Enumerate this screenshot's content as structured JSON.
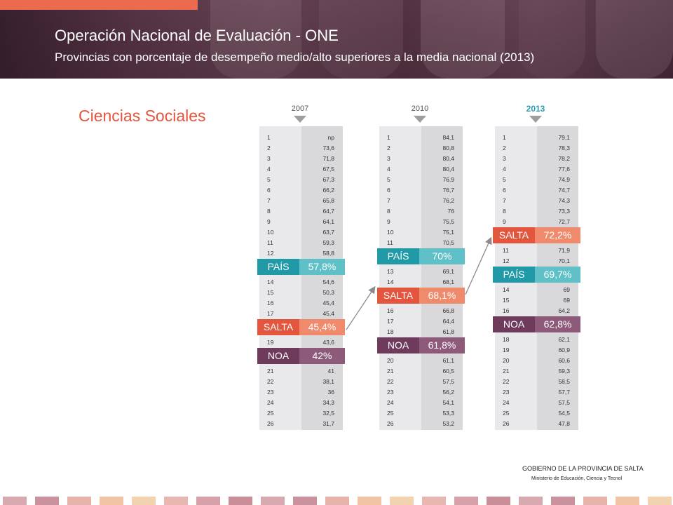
{
  "header": {
    "title": "Operación Nacional de Evaluación - ONE",
    "subtitle": "Provincias con porcentaje de desempeño medio/alto superiores a la media nacional  (2013)"
  },
  "section_title": "Ciencias Sociales",
  "footer": {
    "org": "GOBIERNO DE LA PROVINCIA DE SALTA",
    "ministry": "Ministerio de Educación, Ciencia y Tecnol"
  },
  "colors": {
    "pais": "#1f9aa6",
    "pais_light": "#5fc0c8",
    "salta": "#e4553e",
    "salta_light": "#ef8a6c",
    "noa": "#6e3b5c",
    "noa_light": "#8e5a7a"
  },
  "chart_data": {
    "type": "table",
    "title": "Provincias con porcentaje de desempeño medio/alto superiores a la media nacional  (2013)",
    "subject": "Ciencias Sociales",
    "columns": [
      {
        "year": "2007",
        "highlight": false,
        "entries": [
          {
            "kind": "row",
            "rank": "1",
            "value": "np"
          },
          {
            "kind": "row",
            "rank": "2",
            "value": "73,6"
          },
          {
            "kind": "row",
            "rank": "3",
            "value": "71,8"
          },
          {
            "kind": "row",
            "rank": "4",
            "value": "67,5"
          },
          {
            "kind": "row",
            "rank": "5",
            "value": "67,3"
          },
          {
            "kind": "row",
            "rank": "6",
            "value": "66,2"
          },
          {
            "kind": "row",
            "rank": "7",
            "value": "65,8"
          },
          {
            "kind": "row",
            "rank": "8",
            "value": "64,7"
          },
          {
            "kind": "row",
            "rank": "9",
            "value": "64,1"
          },
          {
            "kind": "row",
            "rank": "10",
            "value": "63,7"
          },
          {
            "kind": "row",
            "rank": "11",
            "value": "59,3"
          },
          {
            "kind": "row",
            "rank": "12",
            "value": "58,8"
          },
          {
            "kind": "pais",
            "label": "PAÍS",
            "value": "57,8%"
          },
          {
            "kind": "row",
            "rank": "14",
            "value": "54,6"
          },
          {
            "kind": "row",
            "rank": "15",
            "value": "50,3"
          },
          {
            "kind": "row",
            "rank": "16",
            "value": "45,4"
          },
          {
            "kind": "row",
            "rank": "17",
            "value": "45,4"
          },
          {
            "kind": "salta",
            "label": "SALTA",
            "value": "45,4%"
          },
          {
            "kind": "row",
            "rank": "19",
            "value": "43,6"
          },
          {
            "kind": "noa",
            "label": "NOA",
            "value": "42%"
          },
          {
            "kind": "row",
            "rank": "21",
            "value": "41"
          },
          {
            "kind": "row",
            "rank": "22",
            "value": "38,1"
          },
          {
            "kind": "row",
            "rank": "23",
            "value": "36"
          },
          {
            "kind": "row",
            "rank": "24",
            "value": "34,3"
          },
          {
            "kind": "row",
            "rank": "25",
            "value": "32,5"
          },
          {
            "kind": "row",
            "rank": "26",
            "value": "31,7"
          }
        ]
      },
      {
        "year": "2010",
        "highlight": false,
        "entries": [
          {
            "kind": "row",
            "rank": "1",
            "value": "84,1"
          },
          {
            "kind": "row",
            "rank": "2",
            "value": "80,8"
          },
          {
            "kind": "row",
            "rank": "3",
            "value": "80,4"
          },
          {
            "kind": "row",
            "rank": "4",
            "value": "80,4"
          },
          {
            "kind": "row",
            "rank": "5",
            "value": "76,9"
          },
          {
            "kind": "row",
            "rank": "6",
            "value": "76,7"
          },
          {
            "kind": "row",
            "rank": "7",
            "value": "76,2"
          },
          {
            "kind": "row",
            "rank": "8",
            "value": "76"
          },
          {
            "kind": "row",
            "rank": "9",
            "value": "75,5"
          },
          {
            "kind": "row",
            "rank": "10",
            "value": "75,1"
          },
          {
            "kind": "row",
            "rank": "11",
            "value": "70,5"
          },
          {
            "kind": "pais",
            "label": "PAÍS",
            "value": "70%"
          },
          {
            "kind": "row",
            "rank": "13",
            "value": "69,1"
          },
          {
            "kind": "row",
            "rank": "14",
            "value": "68,1"
          },
          {
            "kind": "salta",
            "label": "SALTA",
            "value": "68,1%"
          },
          {
            "kind": "row",
            "rank": "16",
            "value": "66,8"
          },
          {
            "kind": "row",
            "rank": "17",
            "value": "64,4"
          },
          {
            "kind": "row",
            "rank": "18",
            "value": "61,8"
          },
          {
            "kind": "noa",
            "label": "NOA",
            "value": "61,8%"
          },
          {
            "kind": "row",
            "rank": "20",
            "value": "61,1"
          },
          {
            "kind": "row",
            "rank": "21",
            "value": "60,5"
          },
          {
            "kind": "row",
            "rank": "22",
            "value": "57,5"
          },
          {
            "kind": "row",
            "rank": "23",
            "value": "56,2"
          },
          {
            "kind": "row",
            "rank": "24",
            "value": "54,1"
          },
          {
            "kind": "row",
            "rank": "25",
            "value": "53,3"
          },
          {
            "kind": "row",
            "rank": "26",
            "value": "53,2"
          }
        ]
      },
      {
        "year": "2013",
        "highlight": true,
        "entries": [
          {
            "kind": "row",
            "rank": "1",
            "value": "79,1"
          },
          {
            "kind": "row",
            "rank": "2",
            "value": "78,3"
          },
          {
            "kind": "row",
            "rank": "3",
            "value": "78,2"
          },
          {
            "kind": "row",
            "rank": "4",
            "value": "77,6"
          },
          {
            "kind": "row",
            "rank": "5",
            "value": "74,9"
          },
          {
            "kind": "row",
            "rank": "6",
            "value": "74,7"
          },
          {
            "kind": "row",
            "rank": "7",
            "value": "74,3"
          },
          {
            "kind": "row",
            "rank": "8",
            "value": "73,3"
          },
          {
            "kind": "row",
            "rank": "9",
            "value": "72,7"
          },
          {
            "kind": "salta",
            "label": "SALTA",
            "value": "72,2%"
          },
          {
            "kind": "row",
            "rank": "11",
            "value": "71,9"
          },
          {
            "kind": "row",
            "rank": "12",
            "value": "70,1"
          },
          {
            "kind": "pais",
            "label": "PAÍS",
            "value": "69,7%"
          },
          {
            "kind": "row",
            "rank": "14",
            "value": "69"
          },
          {
            "kind": "row",
            "rank": "15",
            "value": "69"
          },
          {
            "kind": "row",
            "rank": "16",
            "value": "64,2"
          },
          {
            "kind": "noa",
            "label": "NOA",
            "value": "62,8%"
          },
          {
            "kind": "row",
            "rank": "18",
            "value": "62,1"
          },
          {
            "kind": "row",
            "rank": "19",
            "value": "60,9"
          },
          {
            "kind": "row",
            "rank": "20",
            "value": "60,6"
          },
          {
            "kind": "row",
            "rank": "21",
            "value": "59,3"
          },
          {
            "kind": "row",
            "rank": "22",
            "value": "58,5"
          },
          {
            "kind": "row",
            "rank": "23",
            "value": "57,7"
          },
          {
            "kind": "row",
            "rank": "24",
            "value": "57,5"
          },
          {
            "kind": "row",
            "rank": "25",
            "value": "54,5"
          },
          {
            "kind": "row",
            "rank": "26",
            "value": "47,8"
          }
        ]
      }
    ],
    "annotations": [
      "arrow: SALTA 2007 → SALTA 2010",
      "arrow: SALTA 2010 → SALTA 2013"
    ]
  }
}
